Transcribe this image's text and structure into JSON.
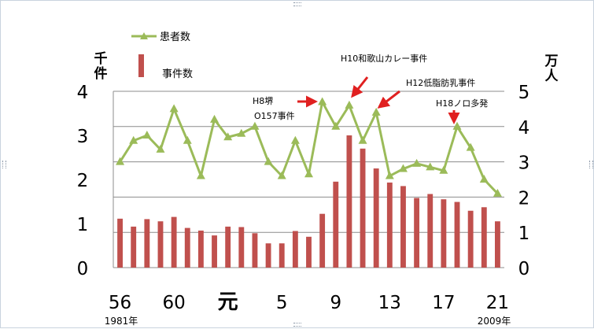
{
  "chart_data": {
    "type": "bar+line",
    "title": "",
    "x_tick_labels": [
      "56",
      "60",
      "元",
      "5",
      "9",
      "13",
      "17",
      "21"
    ],
    "x_start_year_label": "1981年",
    "x_end_year_label": "2009年",
    "left_axis": {
      "unit_label_line1": "千",
      "unit_label_line2": "件",
      "ticks": [
        "0",
        "1",
        "2",
        "3",
        "4"
      ],
      "range": [
        0,
        4
      ]
    },
    "right_axis": {
      "unit_label_line1": "万",
      "unit_label_line2": "人",
      "ticks": [
        "0",
        "1",
        "2",
        "3",
        "4",
        "5"
      ],
      "range": [
        0,
        5
      ]
    },
    "legend": {
      "placement": "top-left",
      "line_label": "患者数",
      "bar_label": "事件数"
    },
    "categories": [
      "1981",
      "1982",
      "1983",
      "1984",
      "1985",
      "1986",
      "1987",
      "1988",
      "1989",
      "1990",
      "1991",
      "1992",
      "1993",
      "1994",
      "1995",
      "1996",
      "1997",
      "1998",
      "1999",
      "2000",
      "2001",
      "2002",
      "2003",
      "2004",
      "2005",
      "2006",
      "2007",
      "2008",
      "2009"
    ],
    "series": [
      {
        "name": "事件数",
        "type": "bar",
        "axis": "left",
        "unit": "千件",
        "values": [
          1.11,
          0.93,
          1.1,
          1.05,
          1.15,
          0.9,
          0.84,
          0.73,
          0.93,
          0.92,
          0.78,
          0.55,
          0.55,
          0.83,
          0.7,
          1.22,
          1.95,
          3.0,
          2.7,
          2.25,
          1.93,
          1.85,
          1.58,
          1.67,
          1.55,
          1.49,
          1.29,
          1.37,
          1.05
        ]
      },
      {
        "name": "患者数",
        "type": "line",
        "axis": "right",
        "unit": "万人",
        "values": [
          3.0,
          3.6,
          3.75,
          3.35,
          4.5,
          3.6,
          2.6,
          4.2,
          3.7,
          3.8,
          4.0,
          3.0,
          2.6,
          3.6,
          2.65,
          4.7,
          4.0,
          4.6,
          3.6,
          4.4,
          2.6,
          2.8,
          2.95,
          2.85,
          2.75,
          4.0,
          3.4,
          2.5,
          2.1
        ]
      }
    ],
    "annotations": [
      {
        "line1": "H8堺",
        "line2": "O157事件",
        "year": "1996"
      },
      {
        "line1": "H10和歌山カレー事件",
        "line2": "",
        "year": "1998"
      },
      {
        "line1": "H12低脂肪乳事件",
        "line2": "",
        "year": "2000"
      },
      {
        "line1": "H18ノロ多発",
        "line2": "",
        "year": "2006"
      }
    ],
    "grid": true,
    "colors": {
      "bar": "#c0504d",
      "line": "#9bbb59",
      "arrow": "#e02020",
      "grid": "#8c8c8c"
    }
  }
}
